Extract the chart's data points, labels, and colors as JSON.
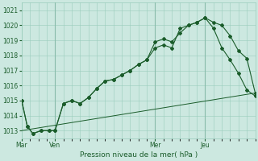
{
  "xlabel": "Pression niveau de la mer( hPa )",
  "background_color": "#cce8e0",
  "grid_color": "#99ccbb",
  "line_color": "#1a5c2a",
  "ylim": [
    1012.5,
    1021.5
  ],
  "yticks": [
    1013,
    1014,
    1015,
    1016,
    1017,
    1018,
    1019,
    1020,
    1021
  ],
  "day_labels": [
    "Mar",
    "Ven",
    "Mer",
    "Jeu"
  ],
  "day_positions": [
    0,
    24,
    96,
    132
  ],
  "xlim": [
    0,
    168
  ],
  "series1_x": [
    0,
    4,
    8,
    14,
    20,
    24,
    30,
    36,
    42,
    48,
    54,
    60,
    66,
    72,
    78,
    84,
    90,
    96,
    102,
    108,
    114,
    120,
    126,
    132,
    138,
    144,
    150,
    156,
    162,
    168
  ],
  "series1_y": [
    1015.0,
    1013.3,
    1012.8,
    1013.0,
    1013.0,
    1013.0,
    1014.8,
    1015.0,
    1014.8,
    1015.2,
    1015.8,
    1016.3,
    1016.4,
    1016.7,
    1017.0,
    1017.4,
    1017.7,
    1018.9,
    1019.1,
    1018.9,
    1019.5,
    1020.0,
    1020.2,
    1020.5,
    1020.2,
    1020.0,
    1019.3,
    1018.3,
    1017.8,
    1015.5
  ],
  "series2_x": [
    0,
    4,
    8,
    14,
    20,
    24,
    30,
    36,
    42,
    48,
    54,
    60,
    66,
    72,
    78,
    84,
    90,
    96,
    102,
    108,
    114,
    120,
    126,
    132,
    138,
    144,
    150,
    156,
    162,
    168
  ],
  "series2_y": [
    1015.0,
    1013.3,
    1012.8,
    1013.0,
    1013.0,
    1013.0,
    1014.8,
    1015.0,
    1014.8,
    1015.2,
    1015.8,
    1016.3,
    1016.4,
    1016.7,
    1017.0,
    1017.4,
    1017.7,
    1018.5,
    1018.7,
    1018.5,
    1019.8,
    1020.0,
    1020.2,
    1020.5,
    1019.8,
    1018.5,
    1017.7,
    1016.8,
    1015.7,
    1015.3
  ],
  "series3_x": [
    0,
    168
  ],
  "series3_y": [
    1013.0,
    1015.5
  ],
  "vline_positions": [
    24,
    96,
    132
  ],
  "figsize": [
    3.2,
    2.0
  ],
  "dpi": 100,
  "font_color": "#1a5c2a",
  "tick_fontsize": 5.5,
  "xlabel_fontsize": 6.5
}
